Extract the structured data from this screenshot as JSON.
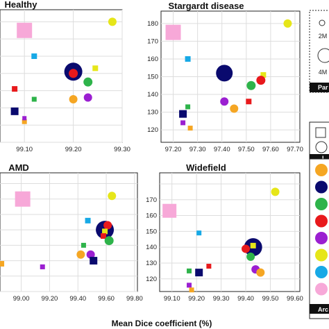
{
  "xlabel": "Mean Dice coefficient (%)",
  "legend_size": {
    "labels": [
      "2M",
      "4M"
    ]
  },
  "legend_headers": {
    "params": "Par",
    "layers": "L",
    "arch": "Arc"
  },
  "legend_arch_colors": [
    "#f5a623",
    "#0a0a6e",
    "#2eb34a",
    "#e8191c",
    "#9b1fd1",
    "#e6e619",
    "#17a9e6",
    "#f7a8d8"
  ],
  "chart_data": [
    {
      "type": "scatter",
      "title": "Healthy",
      "xticks": [
        "99.10",
        "99.20",
        "99.30"
      ],
      "xlim": [
        99.05,
        99.3
      ],
      "ylim": [
        110,
        187
      ],
      "yticks": [],
      "points": [
        {
          "x": 99.1,
          "y": 175,
          "color": "#f7a8d8",
          "shape": "square",
          "size": 22
        },
        {
          "x": 99.28,
          "y": 180,
          "color": "#e6e619",
          "shape": "circle",
          "size": 12
        },
        {
          "x": 99.12,
          "y": 160,
          "color": "#17a9e6",
          "shape": "square",
          "size": 8
        },
        {
          "x": 99.2,
          "y": 151,
          "color": "#0a0a6e",
          "shape": "circle",
          "size": 26
        },
        {
          "x": 99.2,
          "y": 150,
          "color": "#e8191c",
          "shape": "circle",
          "size": 13
        },
        {
          "x": 99.245,
          "y": 153,
          "color": "#e6e619",
          "shape": "square",
          "size": 8
        },
        {
          "x": 99.23,
          "y": 145,
          "color": "#2eb34a",
          "shape": "circle",
          "size": 13
        },
        {
          "x": 99.08,
          "y": 141,
          "color": "#e8191c",
          "shape": "square",
          "size": 8
        },
        {
          "x": 99.12,
          "y": 135,
          "color": "#2eb34a",
          "shape": "square",
          "size": 7
        },
        {
          "x": 99.2,
          "y": 135,
          "color": "#f5a623",
          "shape": "circle",
          "size": 12
        },
        {
          "x": 99.23,
          "y": 136,
          "color": "#9b1fd1",
          "shape": "circle",
          "size": 12
        },
        {
          "x": 99.08,
          "y": 128,
          "color": "#0a0a6e",
          "shape": "square",
          "size": 11
        },
        {
          "x": 99.1,
          "y": 122,
          "color": "#f5a623",
          "shape": "square",
          "size": 7
        },
        {
          "x": 99.1,
          "y": 124,
          "color": "#9b1fd1",
          "shape": "square",
          "size": 6
        }
      ]
    },
    {
      "type": "scatter",
      "title": "Stargardt disease",
      "xticks": [
        "97.20",
        "97.30",
        "97.40",
        "97.50",
        "97.60",
        "97.70"
      ],
      "xlim": [
        97.15,
        97.72
      ],
      "ylim": [
        113,
        187
      ],
      "yticks": [
        "120",
        "130",
        "140",
        "150",
        "160",
        "170",
        "180"
      ],
      "points": [
        {
          "x": 97.2,
          "y": 175,
          "color": "#f7a8d8",
          "shape": "square",
          "size": 22
        },
        {
          "x": 97.67,
          "y": 180,
          "color": "#e6e619",
          "shape": "circle",
          "size": 12
        },
        {
          "x": 97.26,
          "y": 160,
          "color": "#17a9e6",
          "shape": "square",
          "size": 8
        },
        {
          "x": 97.41,
          "y": 152,
          "color": "#0a0a6e",
          "shape": "circle",
          "size": 24
        },
        {
          "x": 97.57,
          "y": 151,
          "color": "#e6e619",
          "shape": "square",
          "size": 8
        },
        {
          "x": 97.56,
          "y": 148,
          "color": "#e8191c",
          "shape": "circle",
          "size": 13
        },
        {
          "x": 97.52,
          "y": 145,
          "color": "#2eb34a",
          "shape": "circle",
          "size": 13
        },
        {
          "x": 97.26,
          "y": 133,
          "color": "#2eb34a",
          "shape": "square",
          "size": 7
        },
        {
          "x": 97.41,
          "y": 136,
          "color": "#9b1fd1",
          "shape": "circle",
          "size": 12
        },
        {
          "x": 97.51,
          "y": 136,
          "color": "#e8191c",
          "shape": "square",
          "size": 8
        },
        {
          "x": 97.45,
          "y": 132,
          "color": "#f5a623",
          "shape": "circle",
          "size": 12
        },
        {
          "x": 97.24,
          "y": 129,
          "color": "#0a0a6e",
          "shape": "square",
          "size": 11
        },
        {
          "x": 97.24,
          "y": 124,
          "color": "#9b1fd1",
          "shape": "square",
          "size": 7
        },
        {
          "x": 97.27,
          "y": 121,
          "color": "#f5a623",
          "shape": "square",
          "size": 7
        }
      ]
    },
    {
      "type": "scatter",
      "title": "AMD",
      "xticks": [
        "99.00",
        "99.20",
        "99.40",
        "99.60",
        "99.80"
      ],
      "xlim": [
        98.85,
        99.82
      ],
      "ylim": [
        110,
        187
      ],
      "yticks": [],
      "points": [
        {
          "x": 99.01,
          "y": 170,
          "color": "#f7a8d8",
          "shape": "square",
          "size": 22
        },
        {
          "x": 99.64,
          "y": 172,
          "color": "#e6e619",
          "shape": "circle",
          "size": 12
        },
        {
          "x": 99.47,
          "y": 156,
          "color": "#17a9e6",
          "shape": "square",
          "size": 8
        },
        {
          "x": 99.59,
          "y": 150,
          "color": "#0a0a6e",
          "shape": "circle",
          "size": 26
        },
        {
          "x": 99.61,
          "y": 153,
          "color": "#e8191c",
          "shape": "circle",
          "size": 12
        },
        {
          "x": 99.59,
          "y": 149,
          "color": "#e6e619",
          "shape": "square",
          "size": 8
        },
        {
          "x": 99.58,
          "y": 146,
          "color": "#e8191c",
          "shape": "square",
          "size": 8
        },
        {
          "x": 99.62,
          "y": 143,
          "color": "#2eb34a",
          "shape": "circle",
          "size": 13
        },
        {
          "x": 99.44,
          "y": 140,
          "color": "#2eb34a",
          "shape": "square",
          "size": 7
        },
        {
          "x": 99.42,
          "y": 134,
          "color": "#f5a623",
          "shape": "circle",
          "size": 12
        },
        {
          "x": 99.49,
          "y": 134,
          "color": "#9b1fd1",
          "shape": "circle",
          "size": 12
        },
        {
          "x": 99.51,
          "y": 130,
          "color": "#0a0a6e",
          "shape": "square",
          "size": 11
        },
        {
          "x": 98.86,
          "y": 128,
          "color": "#f5a623",
          "shape": "square",
          "size": 8
        },
        {
          "x": 99.15,
          "y": 126,
          "color": "#9b1fd1",
          "shape": "square",
          "size": 7
        }
      ]
    },
    {
      "type": "scatter",
      "title": "Widefield",
      "xticks": [
        "99.10",
        "99.20",
        "99.30",
        "99.40",
        "99.50",
        "99.60"
      ],
      "xlim": [
        99.05,
        99.62
      ],
      "ylim": [
        112,
        187
      ],
      "yticks": [
        "120",
        "130",
        "140",
        "150",
        "160",
        "170"
      ],
      "points": [
        {
          "x": 99.09,
          "y": 163,
          "color": "#f7a8d8",
          "shape": "square",
          "size": 20
        },
        {
          "x": 99.52,
          "y": 175,
          "color": "#e6e619",
          "shape": "circle",
          "size": 12
        },
        {
          "x": 99.21,
          "y": 149,
          "color": "#17a9e6",
          "shape": "square",
          "size": 7
        },
        {
          "x": 99.43,
          "y": 140,
          "color": "#0a0a6e",
          "shape": "circle",
          "size": 26
        },
        {
          "x": 99.43,
          "y": 141,
          "color": "#e6e619",
          "shape": "square",
          "size": 8
        },
        {
          "x": 99.4,
          "y": 139,
          "color": "#e8191c",
          "shape": "circle",
          "size": 12
        },
        {
          "x": 99.42,
          "y": 134,
          "color": "#2eb34a",
          "shape": "circle",
          "size": 12
        },
        {
          "x": 99.25,
          "y": 128,
          "color": "#e8191c",
          "shape": "square",
          "size": 7
        },
        {
          "x": 99.17,
          "y": 125,
          "color": "#2eb34a",
          "shape": "square",
          "size": 7
        },
        {
          "x": 99.21,
          "y": 124,
          "color": "#0a0a6e",
          "shape": "square",
          "size": 11
        },
        {
          "x": 99.44,
          "y": 126,
          "color": "#9b1fd1",
          "shape": "circle",
          "size": 12
        },
        {
          "x": 99.46,
          "y": 124,
          "color": "#f5a623",
          "shape": "circle",
          "size": 12
        },
        {
          "x": 99.17,
          "y": 116,
          "color": "#9b1fd1",
          "shape": "square",
          "size": 7
        },
        {
          "x": 99.18,
          "y": 113,
          "color": "#f5a623",
          "shape": "square",
          "size": 7
        }
      ]
    }
  ]
}
